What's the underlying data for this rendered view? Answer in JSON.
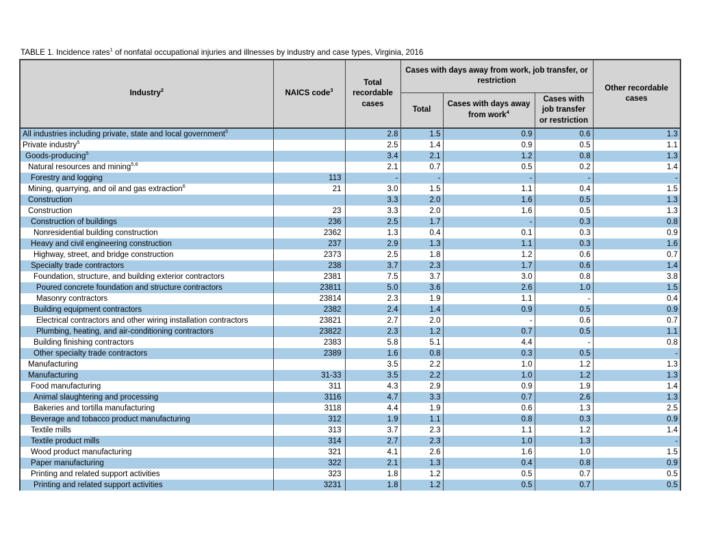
{
  "page": {
    "title": {
      "text": "TABLE 1. Incidence rates",
      "sup": "1",
      "post": " of nonfatal occupational injuries and illnesses by industry and case types, Virginia, 2016"
    }
  },
  "colors": {
    "stripe": "#A9CCE7",
    "header_bg": "#D4D4D4",
    "border": "#404040"
  },
  "table": {
    "headers": {
      "industry": {
        "text": "Industry",
        "sup": "2"
      },
      "naics": {
        "text": "NAICS code",
        "sup": "3"
      },
      "total_recordable": {
        "text": "Total recordable cases"
      },
      "group": {
        "text": "Cases with days away from work, job transfer, or restriction"
      },
      "sub_total": {
        "text": "Total"
      },
      "sub_days_away": {
        "text": "Cases with days away from work",
        "sup": "4"
      },
      "sub_job_transfer": {
        "text": "Cases with job transfer or restriction"
      },
      "other_recordable": {
        "text": "Other recordable cases"
      }
    },
    "rows": [
      {
        "industry": "All industries including private, state and local government",
        "sup": "5",
        "indent": 0,
        "naics": "",
        "values": [
          "2.8",
          "1.5",
          "0.9",
          "0.6",
          "1.3"
        ]
      },
      {
        "industry": "Private industry",
        "sup": "5",
        "indent": 0,
        "naics": "",
        "values": [
          "2.5",
          "1.4",
          "0.9",
          "0.5",
          "1.1"
        ]
      },
      {
        "industry": "Goods-producing",
        "sup": "5",
        "indent": 1,
        "naics": "",
        "values": [
          "3.4",
          "2.1",
          "1.2",
          "0.8",
          "1.3"
        ]
      },
      {
        "industry": "Natural resources and mining",
        "sup": "5,6",
        "indent": 2,
        "naics": "",
        "values": [
          "2.1",
          "0.7",
          "0.5",
          "0.2",
          "1.4"
        ]
      },
      {
        "industry": "Forestry and logging",
        "sup": "",
        "indent": 3,
        "naics": "113",
        "values": [
          "-",
          "-",
          "-",
          "-",
          "-"
        ]
      },
      {
        "industry": "Mining, quarrying, and oil and gas extraction",
        "sup": "6",
        "indent": 2,
        "naics": "21",
        "values": [
          "3.0",
          "1.5",
          "1.1",
          "0.4",
          "1.5"
        ]
      },
      {
        "industry": "Construction",
        "sup": "",
        "indent": 2,
        "naics": "",
        "values": [
          "3.3",
          "2.0",
          "1.6",
          "0.5",
          "1.3"
        ]
      },
      {
        "industry": "Construction",
        "sup": "",
        "indent": 2,
        "naics": "23",
        "values": [
          "3.3",
          "2.0",
          "1.6",
          "0.5",
          "1.3"
        ]
      },
      {
        "industry": "Construction of buildings",
        "sup": "",
        "indent": 3,
        "naics": "236",
        "values": [
          "2.5",
          "1.7",
          "-",
          "0.3",
          "0.8"
        ]
      },
      {
        "industry": "Nonresidential building construction",
        "sup": "",
        "indent": 4,
        "naics": "2362",
        "values": [
          "1.3",
          "0.4",
          "0.1",
          "0.3",
          "0.9"
        ]
      },
      {
        "industry": "Heavy and civil engineering construction",
        "sup": "",
        "indent": 3,
        "naics": "237",
        "values": [
          "2.9",
          "1.3",
          "1.1",
          "0.3",
          "1.6"
        ]
      },
      {
        "industry": "Highway, street, and bridge construction",
        "sup": "",
        "indent": 4,
        "naics": "2373",
        "values": [
          "2.5",
          "1.8",
          "1.2",
          "0.6",
          "0.7"
        ]
      },
      {
        "industry": "Specialty trade contractors",
        "sup": "",
        "indent": 3,
        "naics": "238",
        "values": [
          "3.7",
          "2.3",
          "1.7",
          "0.6",
          "1.4"
        ]
      },
      {
        "industry": "Foundation, structure, and building exterior contractors",
        "sup": "",
        "indent": 4,
        "naics": "2381",
        "values": [
          "7.5",
          "3.7",
          "3.0",
          "0.8",
          "3.8"
        ]
      },
      {
        "industry": "Poured concrete foundation and structure contractors",
        "sup": "",
        "indent": 5,
        "naics": "23811",
        "values": [
          "5.0",
          "3.6",
          "2.6",
          "1.0",
          "1.5"
        ]
      },
      {
        "industry": "Masonry contractors",
        "sup": "",
        "indent": 5,
        "naics": "23814",
        "values": [
          "2.3",
          "1.9",
          "1.1",
          "-",
          "0.4"
        ]
      },
      {
        "industry": "Building equipment contractors",
        "sup": "",
        "indent": 4,
        "naics": "2382",
        "values": [
          "2.4",
          "1.4",
          "0.9",
          "0.5",
          "0.9"
        ]
      },
      {
        "industry": "Electrical contractors and other wiring installation contractors",
        "sup": "",
        "indent": 5,
        "naics": "23821",
        "values": [
          "2.7",
          "2.0",
          "-",
          "0.6",
          "0.7"
        ]
      },
      {
        "industry": "Plumbing, heating, and air-conditioning contractors",
        "sup": "",
        "indent": 5,
        "naics": "23822",
        "values": [
          "2.3",
          "1.2",
          "0.7",
          "0.5",
          "1.1"
        ]
      },
      {
        "industry": "Building finishing contractors",
        "sup": "",
        "indent": 4,
        "naics": "2383",
        "values": [
          "5.8",
          "5.1",
          "4.4",
          "-",
          "0.8"
        ]
      },
      {
        "industry": "Other specialty trade contractors",
        "sup": "",
        "indent": 4,
        "naics": "2389",
        "values": [
          "1.6",
          "0.8",
          "0.3",
          "0.5",
          "-"
        ]
      },
      {
        "industry": "Manufacturing",
        "sup": "",
        "indent": 2,
        "naics": "",
        "values": [
          "3.5",
          "2.2",
          "1.0",
          "1.2",
          "1.3"
        ]
      },
      {
        "industry": "Manufacturing",
        "sup": "",
        "indent": 2,
        "naics": "31-33",
        "values": [
          "3.5",
          "2.2",
          "1.0",
          "1.2",
          "1.3"
        ]
      },
      {
        "industry": "Food manufacturing",
        "sup": "",
        "indent": 3,
        "naics": "311",
        "values": [
          "4.3",
          "2.9",
          "0.9",
          "1.9",
          "1.4"
        ]
      },
      {
        "industry": "Animal slaughtering and processing",
        "sup": "",
        "indent": 4,
        "naics": "3116",
        "values": [
          "4.7",
          "3.3",
          "0.7",
          "2.6",
          "1.3"
        ]
      },
      {
        "industry": "Bakeries and tortilla manufacturing",
        "sup": "",
        "indent": 4,
        "naics": "3118",
        "values": [
          "4.4",
          "1.9",
          "0.6",
          "1.3",
          "2.5"
        ]
      },
      {
        "industry": "Beverage and tobacco product manufacturing",
        "sup": "",
        "indent": 3,
        "naics": "312",
        "values": [
          "1.9",
          "1.1",
          "0.8",
          "0.3",
          "0.9"
        ]
      },
      {
        "industry": "Textile mills",
        "sup": "",
        "indent": 3,
        "naics": "313",
        "values": [
          "3.7",
          "2.3",
          "1.1",
          "1.2",
          "1.4"
        ]
      },
      {
        "industry": "Textile product mills",
        "sup": "",
        "indent": 3,
        "naics": "314",
        "values": [
          "2.7",
          "2.3",
          "1.0",
          "1.3",
          "-"
        ]
      },
      {
        "industry": "Wood product manufacturing",
        "sup": "",
        "indent": 3,
        "naics": "321",
        "values": [
          "4.1",
          "2.6",
          "1.6",
          "1.0",
          "1.5"
        ]
      },
      {
        "industry": "Paper manufacturing",
        "sup": "",
        "indent": 3,
        "naics": "322",
        "values": [
          "2.1",
          "1.3",
          "0.4",
          "0.8",
          "0.9"
        ]
      },
      {
        "industry": "Printing and related support activities",
        "sup": "",
        "indent": 3,
        "naics": "323",
        "values": [
          "1.8",
          "1.2",
          "0.5",
          "0.7",
          "0.5"
        ]
      },
      {
        "industry": "Printing and related support activities",
        "sup": "",
        "indent": 4,
        "naics": "3231",
        "values": [
          "1.8",
          "1.2",
          "0.5",
          "0.7",
          "0.5"
        ]
      }
    ]
  }
}
